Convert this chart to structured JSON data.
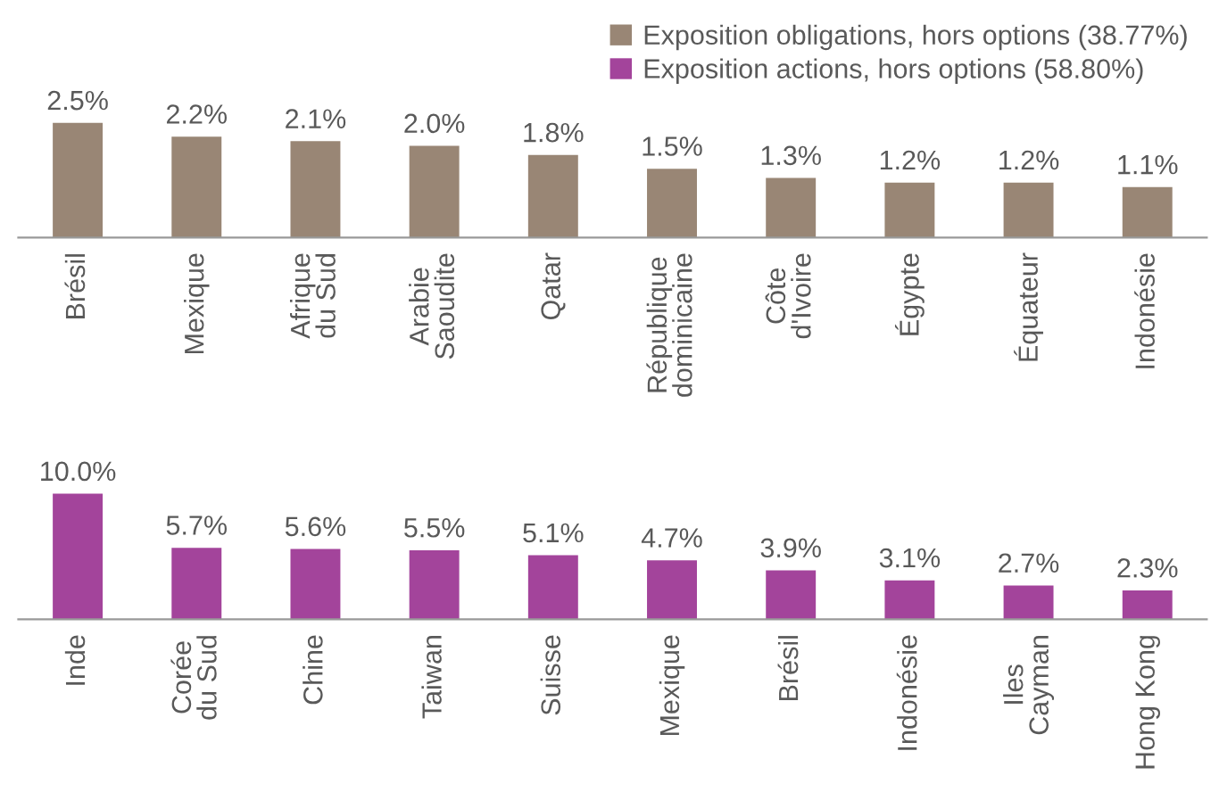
{
  "chart_data": [
    {
      "type": "bar",
      "categories": [
        "Brésil",
        "Mexique",
        "Afrique\ndu Sud",
        "Arabie\nSaoudite",
        "Qatar",
        "République\ndominicaine",
        "Côte\nd'Ivoire",
        "Égypte",
        "Équateur",
        "Indonésie"
      ],
      "series": [
        {
          "name": "Exposition obligations, hors options (38.77%)",
          "color": "#998675",
          "values": [
            2.5,
            2.2,
            2.1,
            2.0,
            1.8,
            1.5,
            1.3,
            1.2,
            1.2,
            1.1
          ],
          "value_labels": [
            "2.5%",
            "2.2%",
            "2.1%",
            "2.0%",
            "1.8%",
            "1.5%",
            "1.3%",
            "1.2%",
            "1.2%",
            "1.1%"
          ]
        }
      ],
      "legend": "top right",
      "grid": false,
      "tick_labels": "x"
    },
    {
      "type": "bar",
      "categories": [
        "Inde",
        "Corée\ndu Sud",
        "Chine",
        "Taiwan",
        "Suisse",
        "Mexique",
        "Brésil",
        "Indonésie",
        "Iles\nCayman",
        "Hong Kong"
      ],
      "series": [
        {
          "name": "Exposition actions, hors options (58.80%)",
          "color": "#a3449b",
          "values": [
            10.0,
            5.7,
            5.6,
            5.5,
            5.1,
            4.7,
            3.9,
            3.1,
            2.7,
            2.3
          ],
          "value_labels": [
            "10.0%",
            "5.7%",
            "5.6%",
            "5.5%",
            "5.1%",
            "4.7%",
            "3.9%",
            "3.1%",
            "2.7%",
            "2.3%"
          ]
        }
      ],
      "legend": "top right",
      "grid": false,
      "tick_labels": "x"
    }
  ]
}
